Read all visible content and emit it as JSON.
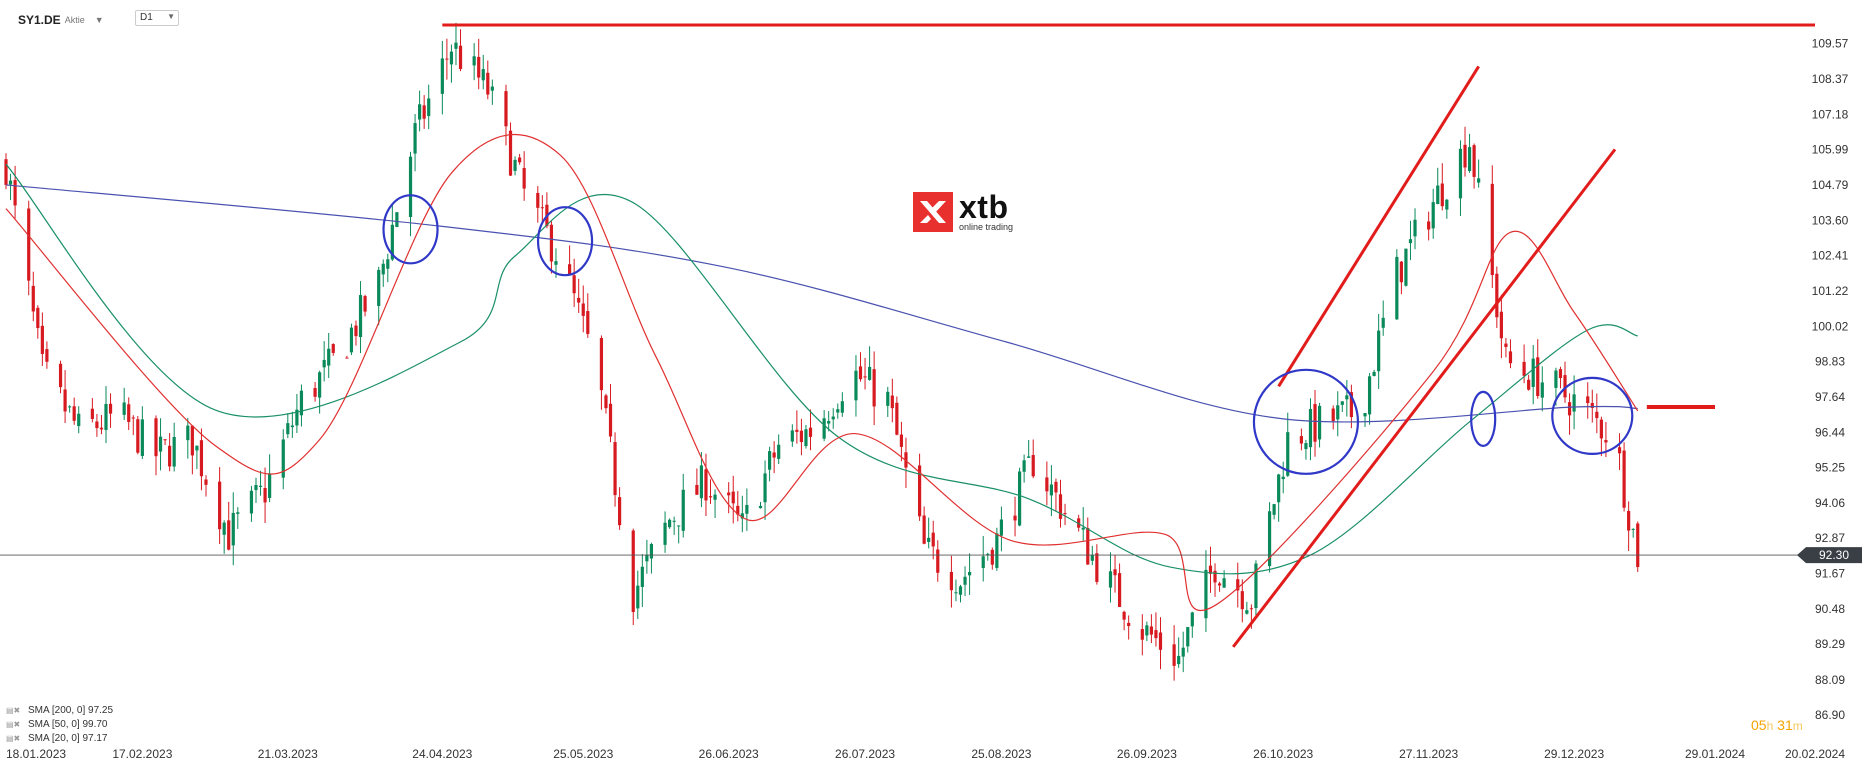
{
  "header": {
    "symbol": "SY1.DE",
    "instrument_type": "Aktie",
    "timeframe": "D1"
  },
  "logo": {
    "name": "xtb",
    "tagline": "online trading"
  },
  "timer": {
    "hours": "05",
    "h_unit": "h",
    "minutes": "31",
    "m_unit": "m"
  },
  "indicators": [
    {
      "label": "SMA [200, 0] 97.25",
      "color": "#4a52b0"
    },
    {
      "label": "SMA [50, 0] 99.70",
      "color": "#1a9068"
    },
    {
      "label": "SMA [20, 0] 97.17",
      "color": "#e03030"
    }
  ],
  "colors": {
    "up": "#0a8a5a",
    "down": "#d71920",
    "sma200": "#4a52b0",
    "sma50": "#1a9068",
    "sma20": "#e03030",
    "annotation_red": "#e21b1b",
    "annotation_blue": "#3038c8",
    "current_price_bg": "#3a3f45"
  },
  "chart_data": {
    "type": "candlestick",
    "timeframe": "D1",
    "x_tick_labels": [
      "18.01.2023",
      "17.02.2023",
      "21.03.2023",
      "24.04.2023",
      "25.05.2023",
      "26.06.2023",
      "26.07.2023",
      "25.08.2023",
      "26.09.2023",
      "26.10.2023",
      "27.11.2023",
      "29.12.2023",
      "29.01.2024",
      "20.02.2024"
    ],
    "y_tick_labels": [
      "109.57",
      "108.37",
      "107.18",
      "105.99",
      "104.79",
      "103.60",
      "102.41",
      "101.22",
      "100.02",
      "98.83",
      "97.64",
      "96.44",
      "95.25",
      "94.06",
      "92.87",
      "91.67",
      "90.48",
      "89.29",
      "88.09",
      "86.90"
    ],
    "ylim": [
      86.9,
      110.2
    ],
    "current_price": "92.30",
    "close_path": [
      [
        "18.01.2023",
        105.5
      ],
      [
        "26.01.2023",
        98.5
      ],
      [
        "03.02.2023",
        96.5
      ],
      [
        "12.02.2023",
        97.0
      ],
      [
        "20.02.2023",
        95.7
      ],
      [
        "28.02.2023",
        96.2
      ],
      [
        "08.03.2023",
        93.0
      ],
      [
        "16.03.2023",
        94.5
      ],
      [
        "24.03.2023",
        97.5
      ],
      [
        "01.04.2023",
        99.0
      ],
      [
        "10.04.2023",
        101.5
      ],
      [
        "18.04.2023",
        106.5
      ],
      [
        "26.04.2023",
        109.5
      ],
      [
        "04.05.2023",
        108.0
      ],
      [
        "12.05.2023",
        104.5
      ],
      [
        "20.05.2023",
        102.3
      ],
      [
        "28.05.2023",
        98.5
      ],
      [
        "05.06.2023",
        91.0
      ],
      [
        "13.06.2023",
        93.5
      ],
      [
        "21.06.2023",
        94.8
      ],
      [
        "29.06.2023",
        93.2
      ],
      [
        "07.07.2023",
        96.0
      ],
      [
        "15.07.2023",
        96.6
      ],
      [
        "23.07.2023",
        98.5
      ],
      [
        "31.07.2023",
        97.5
      ],
      [
        "08.08.2023",
        92.5
      ],
      [
        "16.08.2023",
        91.5
      ],
      [
        "24.08.2023",
        92.8
      ],
      [
        "01.09.2023",
        95.5
      ],
      [
        "09.09.2023",
        93.5
      ],
      [
        "17.09.2023",
        91.5
      ],
      [
        "25.09.2023",
        89.8
      ],
      [
        "03.10.2023",
        88.8
      ],
      [
        "11.10.2023",
        92.0
      ],
      [
        "19.10.2023",
        90.8
      ],
      [
        "27.10.2023",
        96.2
      ],
      [
        "04.11.2023",
        96.8
      ],
      [
        "12.11.2023",
        97.2
      ],
      [
        "20.11.2023",
        101.8
      ],
      [
        "28.11.2023",
        104.2
      ],
      [
        "06.12.2023",
        106.3
      ],
      [
        "14.12.2023",
        98.8
      ],
      [
        "22.12.2023",
        98.2
      ],
      [
        "30.12.2023",
        97.4
      ],
      [
        "07.01.2024",
        96.2
      ],
      [
        "10.01.2024",
        93.8
      ],
      [
        "12.01.2024",
        92.3
      ]
    ],
    "sma200_path": [
      [
        "18.01.2023",
        104.8
      ],
      [
        "24.04.2023",
        103.4
      ],
      [
        "26.06.2023",
        102.0
      ],
      [
        "26.08.2023",
        99.5
      ],
      [
        "26.10.2023",
        96.9
      ],
      [
        "29.12.2023",
        97.3
      ],
      [
        "12.01.2024",
        97.25
      ]
    ],
    "sma50_path": [
      [
        "18.01.2023",
        105.5
      ],
      [
        "05.03.2023",
        97.2
      ],
      [
        "28.04.2023",
        99.5
      ],
      [
        "10.05.2023",
        102.4
      ],
      [
        "05.06.2023",
        104.2
      ],
      [
        "20.07.2023",
        96.3
      ],
      [
        "31.08.2023",
        94.2
      ],
      [
        "01.10.2023",
        91.9
      ],
      [
        "01.11.2023",
        92.3
      ],
      [
        "06.12.2023",
        96.8
      ],
      [
        "01.01.2024",
        99.9
      ],
      [
        "12.01.2024",
        99.7
      ]
    ],
    "sma20_path": [
      [
        "18.01.2023",
        104.0
      ],
      [
        "05.03.2023",
        96.0
      ],
      [
        "28.03.2023",
        96.2
      ],
      [
        "26.04.2023",
        105.2
      ],
      [
        "20.05.2023",
        105.8
      ],
      [
        "10.06.2023",
        99.0
      ],
      [
        "30.06.2023",
        93.5
      ],
      [
        "24.07.2023",
        96.4
      ],
      [
        "27.08.2023",
        92.8
      ],
      [
        "30.09.2023",
        93.0
      ],
      [
        "11.10.2023",
        90.6
      ],
      [
        "28.11.2023",
        98.5
      ],
      [
        "15.12.2023",
        103.2
      ],
      [
        "29.12.2023",
        100.5
      ],
      [
        "12.01.2024",
        97.17
      ]
    ],
    "annotations": {
      "resistance_line": {
        "from": "24.04.2023",
        "to": "20.02.2024",
        "price": 110.2
      },
      "channel_upper": {
        "from": [
          "25.10.2023",
          98.0
        ],
        "to": [
          "08.12.2023",
          108.8
        ]
      },
      "channel_lower": {
        "from": [
          "15.10.2023",
          89.2
        ],
        "to": [
          "07.01.2024",
          106.0
        ]
      },
      "target_mark": {
        "from": "14.01.2024",
        "to": "29.01.2024",
        "price": 97.3
      },
      "circles": [
        {
          "date": "17.04.2023",
          "price": 103.3
        },
        {
          "date": "21.05.2023",
          "price": 102.9
        },
        {
          "date": "31.10.2023",
          "price": 96.8
        },
        {
          "date": "09.12.2023",
          "price": 96.9
        },
        {
          "date": "02.01.2024",
          "price": 97.0
        }
      ]
    }
  }
}
